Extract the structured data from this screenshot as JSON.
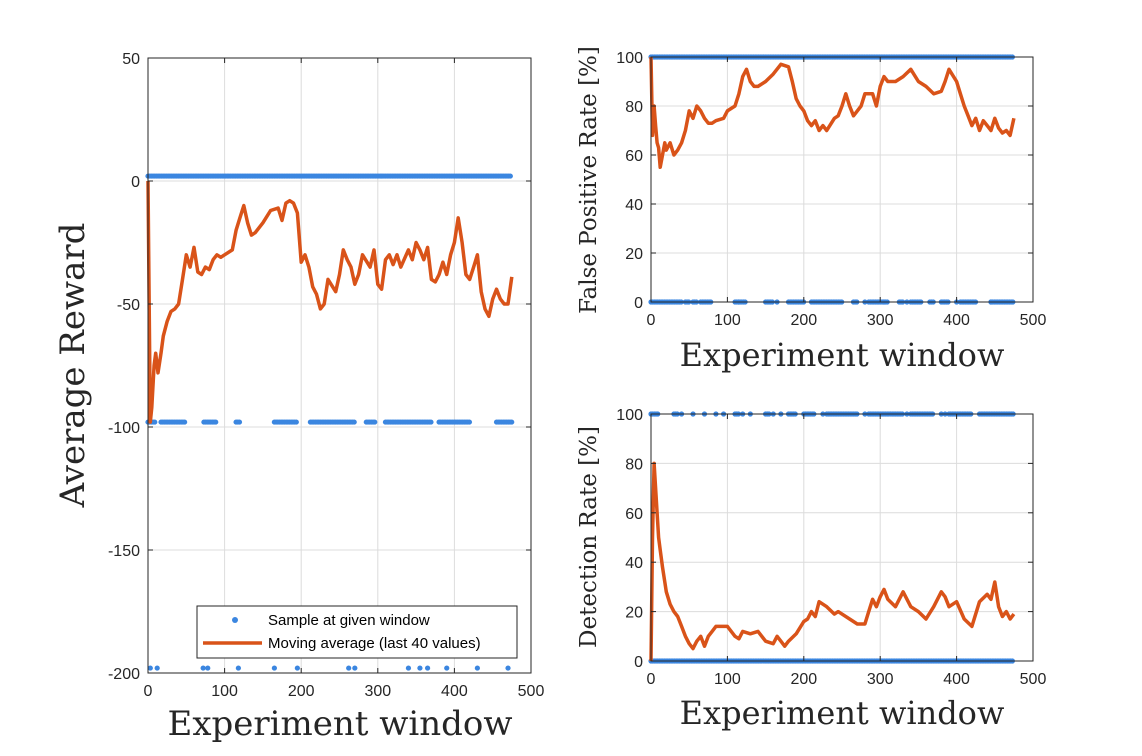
{
  "colors": {
    "samples": "#3b86e0",
    "moving_avg": "#d95319",
    "grid": "#dcdcdc",
    "axis": "#262626"
  },
  "legend": {
    "samples_label": "Sample at given window",
    "moving_avg_label": "Moving average (last 40 values)"
  },
  "chart_data": [
    {
      "id": "reward",
      "type": "scatter+line",
      "xlabel": "Experiment window",
      "ylabel": "Average Reward",
      "xlim": [
        0,
        500
      ],
      "ylim": [
        -200,
        50
      ],
      "xticks": [
        0,
        100,
        200,
        300,
        400,
        500
      ],
      "yticks": [
        -200,
        -150,
        -100,
        -50,
        0,
        50
      ],
      "grid": true,
      "legend_position": "bottom-right",
      "sample_levels": [
        2,
        -98,
        -198
      ],
      "samples": {
        "name": "Sample at given window",
        "y2_runs": [
          [
            0,
            475
          ]
        ],
        "ym98_runs": [
          [
            0,
            10
          ],
          [
            17,
            50
          ],
          [
            73,
            90
          ],
          [
            115,
            120
          ],
          [
            165,
            195
          ],
          [
            212,
            270
          ],
          [
            285,
            298
          ],
          [
            310,
            370
          ],
          [
            380,
            420
          ],
          [
            455,
            475
          ]
        ],
        "ym198_points": [
          3,
          12,
          72,
          78,
          118,
          165,
          195,
          262,
          270,
          340,
          355,
          365,
          390,
          430,
          470
        ]
      },
      "moving_average": {
        "name": "Moving average (last 40 values)",
        "x": [
          0,
          3,
          5,
          8,
          10,
          13,
          17,
          20,
          25,
          30,
          35,
          40,
          45,
          50,
          55,
          60,
          65,
          70,
          75,
          80,
          85,
          90,
          95,
          100,
          110,
          115,
          120,
          125,
          130,
          135,
          140,
          150,
          160,
          170,
          175,
          180,
          185,
          190,
          195,
          200,
          205,
          210,
          215,
          220,
          225,
          230,
          235,
          245,
          250,
          255,
          260,
          265,
          270,
          275,
          280,
          290,
          295,
          300,
          305,
          310,
          315,
          320,
          325,
          330,
          340,
          345,
          350,
          355,
          360,
          365,
          370,
          375,
          380,
          385,
          390,
          395,
          400,
          405,
          410,
          415,
          420,
          425,
          430,
          435,
          440,
          445,
          450,
          455,
          460,
          465,
          470,
          475
        ],
        "y": [
          0,
          -98,
          -92,
          -75,
          -70,
          -78,
          -70,
          -63,
          -57,
          -53,
          -52,
          -50,
          -40,
          -30,
          -35,
          -27,
          -37,
          -38,
          -35,
          -36,
          -32,
          -30,
          -31,
          -30,
          -28,
          -20,
          -15,
          -10,
          -17,
          -22,
          -21,
          -17,
          -12,
          -11,
          -16,
          -9,
          -8,
          -9,
          -13,
          -33,
          -30,
          -35,
          -43,
          -46,
          -52,
          -50,
          -40,
          -45,
          -38,
          -28,
          -32,
          -35,
          -42,
          -38,
          -30,
          -35,
          -28,
          -42,
          -44,
          -32,
          -30,
          -34,
          -30,
          -35,
          -28,
          -32,
          -25,
          -28,
          -32,
          -27,
          -40,
          -41,
          -38,
          -33,
          -38,
          -30,
          -25,
          -15,
          -25,
          -38,
          -40,
          -35,
          -30,
          -45,
          -52,
          -55,
          -48,
          -44,
          -48,
          -50,
          -50,
          -39
        ]
      }
    },
    {
      "id": "fpr",
      "type": "scatter+line",
      "xlabel": "Experiment window",
      "ylabel": "False Positive Rate [%]",
      "xlim": [
        0,
        500
      ],
      "ylim": [
        0,
        100
      ],
      "xticks": [
        0,
        100,
        200,
        300,
        400,
        500
      ],
      "yticks": [
        0,
        20,
        40,
        60,
        80,
        100
      ],
      "grid": true,
      "sample_levels": [
        100,
        0
      ],
      "samples": {
        "name": "Sample at given window",
        "y100_runs": [
          [
            0,
            475
          ]
        ],
        "y0_runs": [
          [
            0,
            40
          ],
          [
            45,
            50
          ],
          [
            55,
            60
          ],
          [
            65,
            80
          ],
          [
            110,
            125
          ],
          [
            150,
            160
          ],
          [
            180,
            200
          ],
          [
            210,
            250
          ],
          [
            265,
            270
          ],
          [
            285,
            310
          ],
          [
            325,
            330
          ],
          [
            340,
            355
          ],
          [
            365,
            370
          ],
          [
            380,
            390
          ],
          [
            405,
            425
          ],
          [
            445,
            475
          ]
        ],
        "y0_points": [
          115,
          165,
          280,
          305,
          335,
          400,
          445
        ]
      },
      "moving_average": {
        "name": "Moving average (last 40 values)",
        "x": [
          0,
          2,
          4,
          6,
          8,
          10,
          12,
          15,
          18,
          20,
          25,
          30,
          35,
          40,
          45,
          50,
          55,
          60,
          65,
          70,
          75,
          80,
          85,
          95,
          100,
          110,
          115,
          120,
          125,
          130,
          135,
          140,
          150,
          160,
          170,
          180,
          185,
          190,
          195,
          200,
          205,
          210,
          215,
          220,
          225,
          230,
          240,
          245,
          250,
          255,
          260,
          265,
          270,
          275,
          280,
          290,
          295,
          300,
          305,
          310,
          320,
          330,
          340,
          350,
          360,
          370,
          380,
          385,
          390,
          400,
          405,
          410,
          415,
          420,
          425,
          430,
          435,
          440,
          445,
          450,
          455,
          460,
          465,
          470,
          475
        ],
        "y": [
          100,
          68,
          80,
          72,
          65,
          63,
          55,
          60,
          65,
          62,
          65,
          60,
          62,
          65,
          70,
          78,
          75,
          80,
          78,
          75,
          73,
          73,
          74,
          75,
          78,
          80,
          85,
          92,
          95,
          90,
          88,
          88,
          90,
          93,
          97,
          96,
          90,
          83,
          80,
          78,
          74,
          72,
          74,
          70,
          72,
          70,
          75,
          76,
          80,
          85,
          80,
          76,
          78,
          80,
          85,
          85,
          80,
          88,
          92,
          90,
          90,
          92,
          95,
          90,
          88,
          85,
          86,
          90,
          95,
          90,
          85,
          80,
          76,
          72,
          75,
          70,
          74,
          72,
          70,
          75,
          71,
          69,
          70,
          68,
          75
        ]
      }
    },
    {
      "id": "detection",
      "type": "scatter+line",
      "xlabel": "Experiment window",
      "ylabel": "Detection Rate [%]",
      "xlim": [
        0,
        500
      ],
      "ylim": [
        0,
        100
      ],
      "xticks": [
        0,
        100,
        200,
        300,
        400,
        500
      ],
      "yticks": [
        0,
        20,
        40,
        60,
        80,
        100
      ],
      "grid": true,
      "sample_levels": [
        100,
        0
      ],
      "samples": {
        "name": "Sample at given window",
        "y0_runs": [
          [
            0,
            475
          ]
        ],
        "y100_runs": [
          [
            0,
            10
          ],
          [
            30,
            35
          ],
          [
            110,
            115
          ],
          [
            150,
            155
          ],
          [
            180,
            190
          ],
          [
            200,
            215
          ],
          [
            230,
            270
          ],
          [
            285,
            330
          ],
          [
            340,
            370
          ],
          [
            390,
            420
          ],
          [
            430,
            475
          ]
        ],
        "y100_points": [
          40,
          55,
          70,
          85,
          95,
          120,
          130,
          160,
          170,
          225,
          280,
          335,
          380,
          385
        ]
      },
      "moving_average": {
        "name": "Moving average (last 40 values)",
        "x": [
          0,
          2,
          4,
          6,
          8,
          10,
          12,
          15,
          18,
          20,
          25,
          30,
          35,
          40,
          45,
          50,
          55,
          60,
          65,
          70,
          75,
          80,
          85,
          90,
          100,
          110,
          115,
          120,
          130,
          140,
          150,
          160,
          165,
          170,
          175,
          180,
          190,
          200,
          205,
          210,
          215,
          220,
          230,
          240,
          245,
          250,
          260,
          270,
          280,
          285,
          290,
          295,
          300,
          305,
          310,
          320,
          330,
          340,
          350,
          360,
          370,
          380,
          385,
          390,
          400,
          410,
          420,
          430,
          440,
          445,
          450,
          455,
          460,
          465,
          470,
          475
        ],
        "y": [
          0,
          50,
          80,
          70,
          60,
          50,
          45,
          38,
          32,
          28,
          23,
          20,
          18,
          14,
          10,
          7,
          5,
          8,
          10,
          6,
          10,
          12,
          14,
          14,
          14,
          10,
          9,
          12,
          11,
          12,
          8,
          7,
          10,
          8,
          6,
          8,
          11,
          16,
          17,
          20,
          18,
          24,
          22,
          19,
          20,
          19,
          17,
          15,
          15,
          20,
          25,
          22,
          26,
          29,
          25,
          22,
          28,
          22,
          20,
          17,
          22,
          28,
          26,
          22,
          24,
          17,
          14,
          24,
          27,
          25,
          32,
          22,
          18,
          20,
          17,
          19
        ]
      }
    }
  ]
}
